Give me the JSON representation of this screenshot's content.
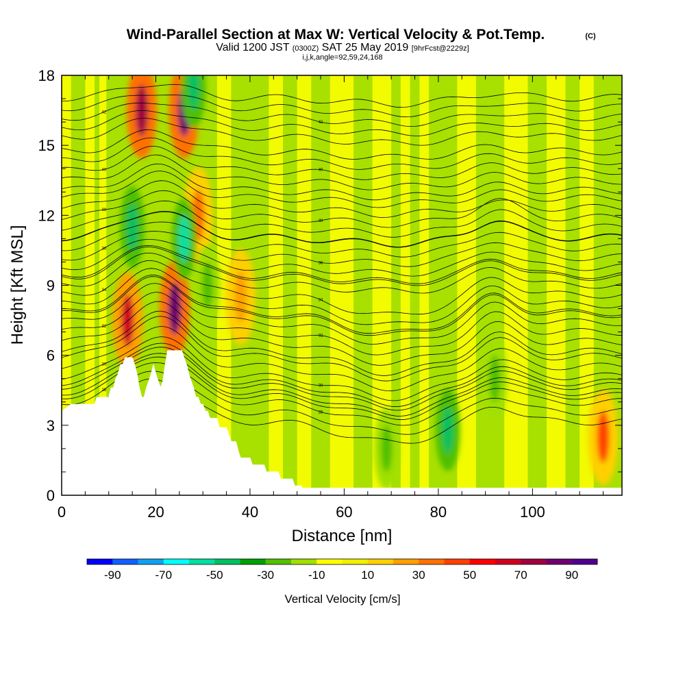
{
  "header": {
    "title": "Wind-Parallel Section at Max W: Vertical Velocity & Pot.Temp.",
    "title_tag": "(C)",
    "subtitle_a": "Valid 1200 JST",
    "subtitle_b": "(0300Z)",
    "subtitle_c": "SAT 25 May 2019",
    "subtitle_d": "[9hrFcst@2229z]",
    "params": "i,j,k,angle=92,59,24,168"
  },
  "chart_data": {
    "type": "heatmap",
    "title": "Wind-Parallel Section at Max W: Vertical Velocity & Pot.Temp.",
    "xlabel": "Distance [nm]",
    "ylabel": "Height [Kft MSL]",
    "xlim": [
      0,
      119
    ],
    "ylim": [
      0,
      18
    ],
    "x_ticks": [
      0,
      20,
      40,
      60,
      80,
      100
    ],
    "y_ticks": [
      0,
      3,
      6,
      9,
      12,
      15,
      18
    ],
    "colorbar": {
      "label": "Vertical Velocity [cm/s]",
      "ticks": [
        -90,
        -70,
        -50,
        -30,
        -10,
        10,
        30,
        50,
        70,
        90
      ],
      "levels": [
        -100,
        -90,
        -80,
        -70,
        -60,
        -50,
        -40,
        -30,
        -20,
        -10,
        0,
        10,
        20,
        30,
        40,
        50,
        60,
        70,
        80,
        90,
        100
      ],
      "colors": [
        "#0000ff",
        "#1060ff",
        "#10a0f0",
        "#00ffff",
        "#00e0a0",
        "#00c060",
        "#00a000",
        "#50c000",
        "#a0e000",
        "#ffff00",
        "#f0f000",
        "#ffd000",
        "#ffa000",
        "#ff7000",
        "#ff4000",
        "#ff0000",
        "#d00020",
        "#a00040",
        "#700070",
        "#500090"
      ]
    },
    "updrafts": [
      {
        "x": 14,
        "y": 7.5,
        "w": 65,
        "kind": "updraft"
      },
      {
        "x": 17,
        "y": 16.5,
        "w": 75,
        "kind": "updraft"
      },
      {
        "x": 24,
        "y": 8.0,
        "w": 85,
        "kind": "updraft"
      },
      {
        "x": 26,
        "y": 16.5,
        "w": 85,
        "kind": "updraft"
      },
      {
        "x": 29,
        "y": 12,
        "w": 35,
        "kind": "updraft"
      },
      {
        "x": 38,
        "y": 8.5,
        "w": 25,
        "kind": "updraft"
      },
      {
        "x": 115,
        "y": 2.5,
        "w": 40,
        "kind": "updraft"
      }
    ],
    "downdrafts": [
      {
        "x": 15,
        "y": 11.5,
        "w": -45,
        "kind": "downdraft"
      },
      {
        "x": 26,
        "y": 11.0,
        "w": -55,
        "kind": "downdraft"
      },
      {
        "x": 28,
        "y": 17.5,
        "w": -50,
        "kind": "downdraft"
      },
      {
        "x": 31,
        "y": 9.0,
        "w": -30,
        "kind": "downdraft"
      },
      {
        "x": 82,
        "y": 2.8,
        "w": -45,
        "kind": "downdraft"
      },
      {
        "x": 69,
        "y": 2.0,
        "w": -30,
        "kind": "downdraft"
      },
      {
        "x": 92,
        "y": 5.0,
        "w": -25,
        "kind": "downdraft"
      }
    ],
    "isentropes": [
      {
        "theta": 28,
        "base": 4.0
      },
      {
        "theta": 30,
        "base": 5.1
      },
      {
        "theta": 32,
        "base": 7.0
      },
      {
        "theta": 34,
        "base": 8.6
      },
      {
        "theta": 36,
        "base": 10.2
      },
      {
        "theta": 38,
        "base": 11.9
      },
      {
        "theta": 40,
        "base": 13.9
      },
      {
        "theta": 42,
        "base": 16.2
      }
    ],
    "terrain": [
      [
        0,
        3.6
      ],
      [
        2,
        3.9
      ],
      [
        7,
        3.9
      ],
      [
        7.5,
        4.2
      ],
      [
        10,
        4.2
      ],
      [
        10.5,
        4.6
      ],
      [
        11,
        4.6
      ],
      [
        11.5,
        5.0
      ],
      [
        12,
        5.2
      ],
      [
        12.5,
        5.6
      ],
      [
        13,
        5.6
      ],
      [
        13.5,
        5.9
      ],
      [
        15,
        5.9
      ],
      [
        15.5,
        5.6
      ],
      [
        16,
        5.2
      ],
      [
        16.5,
        4.6
      ],
      [
        17,
        4.2
      ],
      [
        17.5,
        4.2
      ],
      [
        18,
        4.6
      ],
      [
        18.5,
        4.9
      ],
      [
        19,
        5.2
      ],
      [
        19.5,
        5.6
      ],
      [
        20,
        5.2
      ],
      [
        20.5,
        4.9
      ],
      [
        21,
        4.6
      ],
      [
        21.5,
        4.9
      ],
      [
        22,
        5.6
      ],
      [
        22.5,
        6.2
      ],
      [
        25.5,
        6.2
      ],
      [
        26,
        5.9
      ],
      [
        26.5,
        5.6
      ],
      [
        27,
        5.2
      ],
      [
        27.5,
        4.9
      ],
      [
        28,
        4.6
      ],
      [
        28.5,
        4.2
      ],
      [
        29,
        4.2
      ],
      [
        29.5,
        3.9
      ],
      [
        30,
        3.9
      ],
      [
        30.5,
        3.6
      ],
      [
        31,
        3.6
      ],
      [
        31.5,
        3.3
      ],
      [
        33,
        3.3
      ],
      [
        33.5,
        2.9
      ],
      [
        35,
        2.9
      ],
      [
        35.5,
        2.6
      ],
      [
        36,
        2.3
      ],
      [
        37,
        2.3
      ],
      [
        37.5,
        1.9
      ],
      [
        38,
        1.6
      ],
      [
        40,
        1.6
      ],
      [
        40.5,
        1.3
      ],
      [
        43,
        1.3
      ],
      [
        43.5,
        1.0
      ],
      [
        46,
        1.0
      ],
      [
        46.5,
        0.7
      ],
      [
        49,
        0.7
      ],
      [
        49.5,
        0.4
      ],
      [
        51,
        0.4
      ],
      [
        51,
        0
      ]
    ]
  }
}
